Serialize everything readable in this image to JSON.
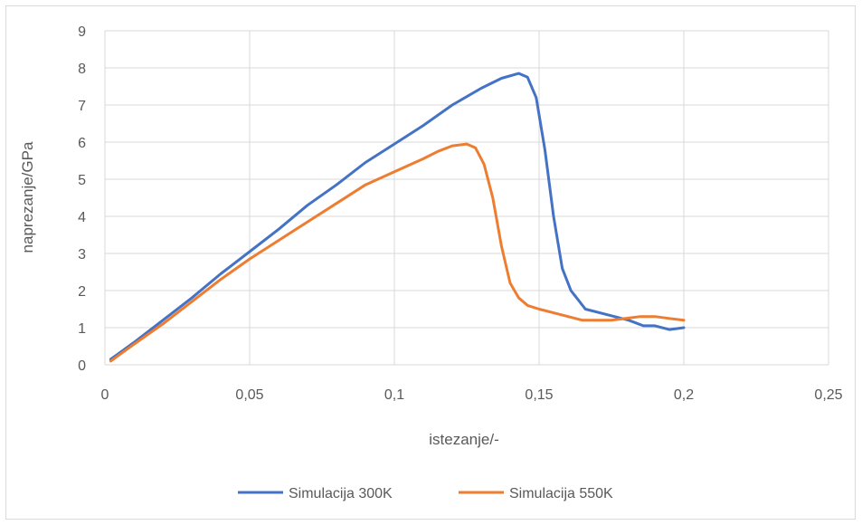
{
  "chart_data": {
    "type": "scatter",
    "title": "",
    "xlabel": "istezanje/-",
    "ylabel": "naprezanje/GPa",
    "xlim": [
      0,
      0.25
    ],
    "ylim": [
      0,
      9
    ],
    "x_ticks": [
      "0",
      "0,05",
      "0,1",
      "0,15",
      "0,2",
      "0,25"
    ],
    "y_ticks": [
      "0",
      "1",
      "2",
      "3",
      "4",
      "5",
      "6",
      "7",
      "8",
      "9"
    ],
    "grid": "horizontal and vertical",
    "legend_position": "bottom",
    "series": [
      {
        "name": "Simulacija 300K",
        "color": "#4472C4",
        "points": [
          [
            0.002,
            0.15
          ],
          [
            0.01,
            0.6
          ],
          [
            0.02,
            1.2
          ],
          [
            0.03,
            1.8
          ],
          [
            0.04,
            2.45
          ],
          [
            0.05,
            3.05
          ],
          [
            0.06,
            3.65
          ],
          [
            0.07,
            4.3
          ],
          [
            0.08,
            4.85
          ],
          [
            0.09,
            5.45
          ],
          [
            0.1,
            5.95
          ],
          [
            0.11,
            6.45
          ],
          [
            0.12,
            7.0
          ],
          [
            0.13,
            7.45
          ],
          [
            0.137,
            7.72
          ],
          [
            0.143,
            7.85
          ],
          [
            0.146,
            7.75
          ],
          [
            0.149,
            7.2
          ],
          [
            0.152,
            5.8
          ],
          [
            0.155,
            4.0
          ],
          [
            0.158,
            2.6
          ],
          [
            0.161,
            2.0
          ],
          [
            0.166,
            1.5
          ],
          [
            0.171,
            1.4
          ],
          [
            0.176,
            1.3
          ],
          [
            0.181,
            1.2
          ],
          [
            0.186,
            1.05
          ],
          [
            0.19,
            1.05
          ],
          [
            0.195,
            0.95
          ],
          [
            0.2,
            1.0
          ]
        ]
      },
      {
        "name": "Simulacija 550K",
        "color": "#ED7D31",
        "points": [
          [
            0.002,
            0.1
          ],
          [
            0.01,
            0.55
          ],
          [
            0.02,
            1.1
          ],
          [
            0.03,
            1.7
          ],
          [
            0.04,
            2.3
          ],
          [
            0.05,
            2.85
          ],
          [
            0.06,
            3.35
          ],
          [
            0.07,
            3.85
          ],
          [
            0.08,
            4.35
          ],
          [
            0.09,
            4.85
          ],
          [
            0.1,
            5.2
          ],
          [
            0.11,
            5.55
          ],
          [
            0.115,
            5.75
          ],
          [
            0.12,
            5.9
          ],
          [
            0.125,
            5.95
          ],
          [
            0.128,
            5.85
          ],
          [
            0.131,
            5.4
          ],
          [
            0.134,
            4.5
          ],
          [
            0.137,
            3.2
          ],
          [
            0.14,
            2.2
          ],
          [
            0.143,
            1.8
          ],
          [
            0.146,
            1.6
          ],
          [
            0.15,
            1.5
          ],
          [
            0.155,
            1.4
          ],
          [
            0.16,
            1.3
          ],
          [
            0.165,
            1.2
          ],
          [
            0.17,
            1.2
          ],
          [
            0.175,
            1.2
          ],
          [
            0.18,
            1.25
          ],
          [
            0.185,
            1.3
          ],
          [
            0.19,
            1.3
          ],
          [
            0.195,
            1.25
          ],
          [
            0.2,
            1.2
          ]
        ]
      }
    ]
  }
}
